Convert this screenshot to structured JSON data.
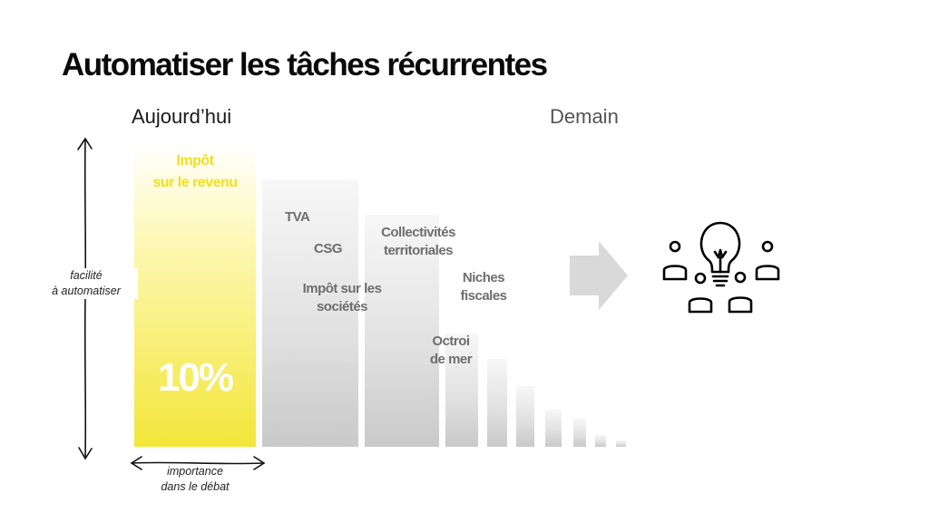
{
  "title": "Automatiser les tâches récurrentes",
  "header": {
    "today": "Aujourd’hui",
    "tomorrow": "Demain"
  },
  "bars": {
    "main_line1": "Impôt",
    "main_line2": "sur le revenu",
    "main_percent": "10%",
    "labels": [
      {
        "text": "TVA"
      },
      {
        "text": "CSG"
      },
      {
        "line1": "Impôt sur les",
        "line2": "sociétés"
      },
      {
        "line1": "Collectivités",
        "line2": "territoriales"
      },
      {
        "line1": "Niches",
        "line2": "fiscales"
      },
      {
        "line1": "Octroi",
        "line2": "de mer"
      }
    ]
  },
  "axes": {
    "y_line1": "facilité",
    "y_line2": "à automatiser",
    "x_line1": "importance",
    "x_line2": "dans le débat"
  },
  "colors": {
    "accent_yellow": "#f3e63a",
    "bar_grey": "#d6d6d6",
    "arrow_grey": "#d9d9d9"
  },
  "icons": [
    "arrow-right-icon",
    "people-lightbulb-icon"
  ]
}
